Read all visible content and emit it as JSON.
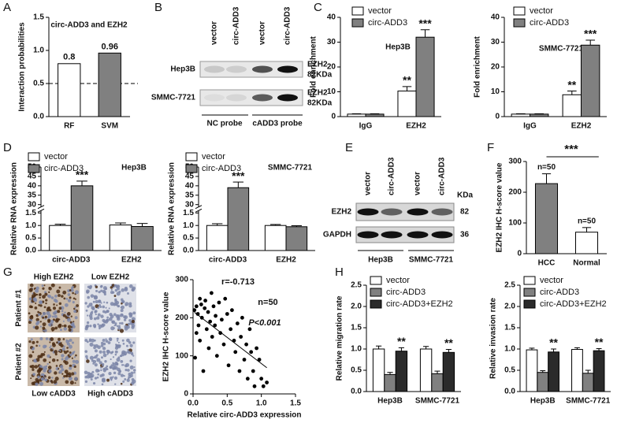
{
  "panel_letters": [
    "A",
    "B",
    "C",
    "D",
    "E",
    "F",
    "G",
    "H"
  ],
  "blot_b": {
    "lanes": [
      "vector",
      "circ-ADD3",
      "vector",
      "circ-ADD3"
    ],
    "rows": [
      "Hep3B",
      "SMMC-7721"
    ],
    "bands": [
      [
        "EZH2",
        "82KDa"
      ],
      [
        "EZH2",
        "82KDa"
      ]
    ],
    "probes": [
      "NC probe",
      "cADD3 probe"
    ]
  },
  "blot_e": {
    "lanes": [
      "vector",
      "circ-ADD3",
      "vector",
      "circ-ADD3"
    ],
    "unit": "KDa",
    "rows": [
      {
        "protein": "EZH2",
        "kda": 82
      },
      {
        "protein": "GAPDH",
        "kda": 36
      }
    ],
    "cell_lines": [
      "Hep3B",
      "SMMC-7721"
    ]
  },
  "ihc": {
    "columns": [
      "High EZH2",
      "Low EZH2"
    ],
    "rows": [
      "Patient #1",
      "Patient #2"
    ],
    "footers": [
      "Low cADD3",
      "High cADD3"
    ]
  },
  "chart_data": [
    {
      "type": "bar",
      "title": "circ-ADD3 and EZH2",
      "y_label": "Interaction probabilities",
      "categories": [
        "RF",
        "SVM"
      ],
      "values": [
        0.8,
        0.96
      ],
      "colors": [
        "#ffffff",
        "#808080"
      ],
      "ylim": [
        0,
        1.5
      ],
      "yticks": [
        {
          "value": 0,
          "label": "0.0"
        },
        0.5,
        {
          "value": 1,
          "label": "1.0"
        },
        1.5
      ],
      "hline": 0.5
    },
    {
      "type": "bar",
      "y_label": "Fold enrichment",
      "annotation": "Hep3B",
      "categories": [
        "IgG",
        "EZH2"
      ],
      "series": [
        {
          "name": "vector",
          "color": "#ffffff",
          "values": [
            1,
            10.3
          ],
          "errors": [
            0.15,
            1.8
          ],
          "sig": [
            null,
            "**"
          ]
        },
        {
          "name": "circ-ADD3",
          "color": "#808080",
          "values": [
            1,
            32
          ],
          "errors": [
            0.15,
            3
          ],
          "sig": [
            null,
            "***"
          ]
        }
      ],
      "ylim": [
        0,
        40
      ],
      "yticks": [
        0,
        10,
        20,
        30,
        40
      ]
    },
    {
      "type": "bar",
      "y_label": "Fold enrichment",
      "annotation": "SMMC-7721",
      "categories": [
        "IgG",
        "EZH2"
      ],
      "series": [
        {
          "name": "vector",
          "color": "#ffffff",
          "values": [
            1,
            8.8
          ],
          "errors": [
            0.15,
            1.5
          ],
          "sig": [
            null,
            "**"
          ]
        },
        {
          "name": "circ-ADD3",
          "color": "#808080",
          "values": [
            1,
            28.8
          ],
          "errors": [
            0.15,
            2
          ],
          "sig": [
            null,
            "***"
          ]
        }
      ],
      "ylim": [
        0,
        40
      ],
      "yticks": [
        0,
        10,
        20,
        30,
        40
      ]
    },
    {
      "type": "bar",
      "y_label": "Relative RNA expression",
      "annotation": "Hep3B",
      "categories": [
        "circ-ADD3",
        "EZH2"
      ],
      "series": [
        {
          "name": "vector",
          "color": "#ffffff",
          "values": [
            1.0,
            1.02
          ],
          "errors": [
            0.05,
            0.08
          ]
        },
        {
          "name": "circ-ADD3",
          "color": "#808080",
          "values": [
            40,
            0.96
          ],
          "errors": [
            2.5,
            0.12
          ],
          "sig": [
            "***",
            null
          ]
        }
      ],
      "ylim": [
        0,
        50
      ],
      "y_break": [
        1.5,
        30
      ],
      "yticks": [
        {
          "value": 0,
          "label": "0.0"
        },
        0.5,
        {
          "value": 1,
          "label": "1.0"
        },
        1.5,
        30,
        35,
        40,
        45,
        50
      ]
    },
    {
      "type": "bar",
      "y_label": "Relative RNA expression",
      "annotation": "SMMC-7721",
      "categories": [
        "circ-ADD3",
        "EZH2"
      ],
      "series": [
        {
          "name": "vector",
          "color": "#ffffff",
          "values": [
            1.0,
            1.0
          ],
          "errors": [
            0.07,
            0.04
          ]
        },
        {
          "name": "circ-ADD3",
          "color": "#808080",
          "values": [
            39,
            0.95
          ],
          "errors": [
            3,
            0.04
          ],
          "sig": [
            "***",
            null
          ]
        }
      ],
      "ylim": [
        0,
        50
      ],
      "y_break": [
        1.5,
        30
      ],
      "yticks": [
        {
          "value": 0,
          "label": "0.0"
        },
        0.5,
        {
          "value": 1,
          "label": "1.0"
        },
        1.5,
        30,
        35,
        40,
        45,
        50
      ]
    },
    {
      "type": "bar",
      "y_label": "EZH2 IHC H-score value",
      "categories": [
        "HCC",
        "Normal"
      ],
      "values": [
        228,
        70
      ],
      "errors": [
        32,
        15
      ],
      "colors": [
        "#808080",
        "#ffffff"
      ],
      "notes": [
        "n=50",
        "n=50"
      ],
      "comparison": "***",
      "ylim": [
        0,
        300
      ],
      "yticks": [
        0,
        100,
        200,
        300
      ]
    },
    {
      "type": "scatter",
      "x_label": "Relative circ-ADD3 expression",
      "y_label": "EZH2 IHC H-score value",
      "x": [
        0.02,
        0.03,
        0.05,
        0.05,
        0.07,
        0.08,
        0.1,
        0.1,
        0.12,
        0.13,
        0.15,
        0.17,
        0.18,
        0.2,
        0.22,
        0.23,
        0.25,
        0.27,
        0.28,
        0.3,
        0.32,
        0.33,
        0.35,
        0.38,
        0.4,
        0.42,
        0.45,
        0.47,
        0.5,
        0.52,
        0.55,
        0.57,
        0.6,
        0.62,
        0.65,
        0.68,
        0.7,
        0.72,
        0.75,
        0.78,
        0.8,
        0.83,
        0.85,
        0.88,
        0.9,
        0.93,
        0.97,
        1.0,
        1.03,
        1.08
      ],
      "y": [
        220,
        95,
        160,
        230,
        210,
        180,
        250,
        140,
        235,
        200,
        60,
        225,
        245,
        170,
        215,
        120,
        190,
        265,
        150,
        230,
        180,
        205,
        100,
        240,
        160,
        195,
        130,
        250,
        210,
        75,
        170,
        220,
        140,
        110,
        185,
        60,
        150,
        200,
        90,
        130,
        40,
        170,
        110,
        60,
        20,
        120,
        90,
        40,
        20,
        30
      ],
      "color": "#000000",
      "fit_line": true,
      "annotations": [
        "r=-0.713",
        "n=50",
        "P<0.001"
      ],
      "xlim": [
        0,
        1.5
      ],
      "xticks": [
        {
          "value": 0,
          "label": "0.0"
        },
        0.5,
        {
          "value": 1,
          "label": "1.0"
        },
        1.5
      ],
      "ylim": [
        0,
        300
      ],
      "yticks": [
        0,
        100,
        200,
        300
      ]
    },
    {
      "type": "bar",
      "y_label": "Relative migration rate",
      "categories": [
        "Hep3B",
        "SMMC-7721"
      ],
      "series": [
        {
          "name": "vector",
          "color": "#ffffff",
          "values": [
            1.0,
            1.0
          ],
          "errors": [
            0.07,
            0.06
          ]
        },
        {
          "name": "circ-ADD3",
          "color": "#808080",
          "values": [
            0.4,
            0.42
          ],
          "errors": [
            0.05,
            0.06
          ]
        },
        {
          "name": "circ-ADD3+EZH2",
          "color": "#2b2b2b",
          "values": [
            0.95,
            0.92
          ],
          "errors": [
            0.08,
            0.07
          ],
          "sig": [
            "**",
            "**"
          ]
        }
      ],
      "ylim": [
        0,
        2.5
      ],
      "yticks": [
        {
          "value": 0,
          "label": "0.0"
        },
        0.5,
        {
          "value": 1,
          "label": "1.0"
        },
        1.5,
        {
          "value": 2,
          "label": "2.0"
        },
        2.5
      ]
    },
    {
      "type": "bar",
      "y_label": "Relative invasion rate",
      "categories": [
        "Hep3B",
        "SMMC-7721"
      ],
      "series": [
        {
          "name": "vector",
          "color": "#ffffff",
          "values": [
            0.98,
            0.99
          ],
          "errors": [
            0.04,
            0.04
          ]
        },
        {
          "name": "circ-ADD3",
          "color": "#808080",
          "values": [
            0.45,
            0.43
          ],
          "errors": [
            0.04,
            0.07
          ]
        },
        {
          "name": "circ-ADD3+EZH2",
          "color": "#2b2b2b",
          "values": [
            0.93,
            0.96
          ],
          "errors": [
            0.07,
            0.05
          ],
          "sig": [
            "**",
            "**"
          ]
        }
      ],
      "ylim": [
        0,
        2.5
      ],
      "yticks": [
        {
          "value": 0,
          "label": "0.0"
        },
        0.5,
        {
          "value": 1,
          "label": "1.0"
        },
        1.5,
        {
          "value": 2,
          "label": "2.0"
        },
        2.5
      ]
    }
  ]
}
